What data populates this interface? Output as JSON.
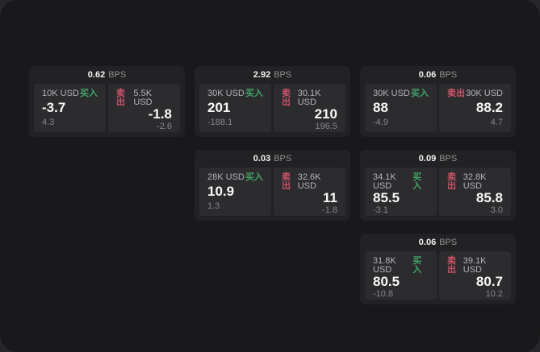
{
  "colors": {
    "accent_green": "#3fa564",
    "accent_red": "#cf5268",
    "panel_bg": "#19191b",
    "card_bg": "#222225",
    "tile_bg": "#2c2c2f"
  },
  "cards": [
    {
      "bps": "0.62",
      "unit": "BPS",
      "buy": {
        "amount": "10K USD",
        "label": "买入",
        "price": "-3.7",
        "sub": "4.3"
      },
      "sell": {
        "amount": "5.5K USD",
        "label": "卖出",
        "price": "-1.8",
        "sub": "-2.6"
      }
    },
    {
      "bps": "2.92",
      "unit": "BPS",
      "buy": {
        "amount": "30K USD",
        "label": "买入",
        "price": "201",
        "sub": "-188.1"
      },
      "sell": {
        "amount": "30.1K USD",
        "label": "卖出",
        "price": "210",
        "sub": "196.5"
      }
    },
    {
      "bps": "0.06",
      "unit": "BPS",
      "buy": {
        "amount": "30K USD",
        "label": "买入",
        "price": "88",
        "sub": "-4.9"
      },
      "sell": {
        "amount": "30K USD",
        "label": "卖出",
        "price": "88.2",
        "sub": "4.7"
      }
    },
    {
      "bps": "0.03",
      "unit": "BPS",
      "buy": {
        "amount": "28K USD",
        "label": "买入",
        "price": "10.9",
        "sub": "1.3"
      },
      "sell": {
        "amount": "32.6K USD",
        "label": "卖出",
        "price": "11",
        "sub": "-1.8"
      }
    },
    {
      "bps": "0.09",
      "unit": "BPS",
      "buy": {
        "amount": "34.1K USD",
        "label": "买入",
        "price": "85.5",
        "sub": "-3.1"
      },
      "sell": {
        "amount": "32.8K USD",
        "label": "卖出",
        "price": "85.8",
        "sub": "3.0"
      }
    },
    {
      "bps": "0.06",
      "unit": "BPS",
      "buy": {
        "amount": "31.8K USD",
        "label": "买入",
        "price": "80.5",
        "sub": "-10.8"
      },
      "sell": {
        "amount": "39.1K USD",
        "label": "卖出",
        "price": "80.7",
        "sub": "10.2"
      }
    }
  ]
}
